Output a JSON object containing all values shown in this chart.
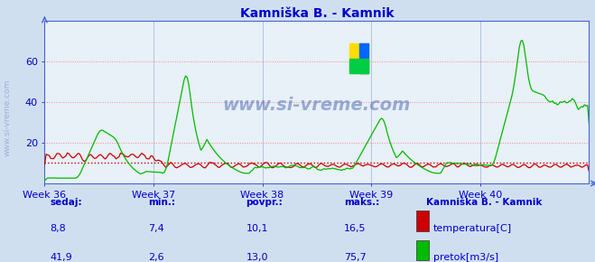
{
  "title": "Kamniška B. - Kamnik",
  "bg_color": "#d0dff0",
  "plot_bg_color": "#e8f0f8",
  "grid_color_h": "#ff8888",
  "grid_color_v": "#aabbdd",
  "title_color": "#0000cc",
  "axis_color": "#4466cc",
  "tick_color": "#0000cc",
  "temp_color": "#cc0000",
  "flow_color": "#00bb00",
  "avg_line_color": "#cc0000",
  "avg_line_value": 10.1,
  "ylim": [
    0,
    80
  ],
  "yticks": [
    20,
    40,
    60
  ],
  "weeks": [
    "Week 36",
    "Week 37",
    "Week 38",
    "Week 39",
    "Week 40"
  ],
  "n_points": 360,
  "temp_min": 7.4,
  "temp_max": 16.5,
  "temp_avg": 10.1,
  "temp_sedaj": "8,8",
  "flow_min": 2.6,
  "flow_max": 75.7,
  "flow_avg": 13.0,
  "flow_sedaj": "41,9",
  "watermark": "www.si-vreme.com",
  "label_temp": "temperatura[C]",
  "label_flow": "pretok[m3/s]",
  "legend_title": "Kamniška B. - Kamnik",
  "stat_headers": [
    "sedaj:",
    "min.:",
    "povpr.:",
    "maks.:"
  ],
  "stat_vals_temp": [
    "8,8",
    "7,4",
    "10,1",
    "16,5"
  ],
  "stat_vals_flow": [
    "41,9",
    "2,6",
    "13,0",
    "75,7"
  ],
  "footer_color": "#0000cc",
  "left_label": "www.si-vreme.com"
}
